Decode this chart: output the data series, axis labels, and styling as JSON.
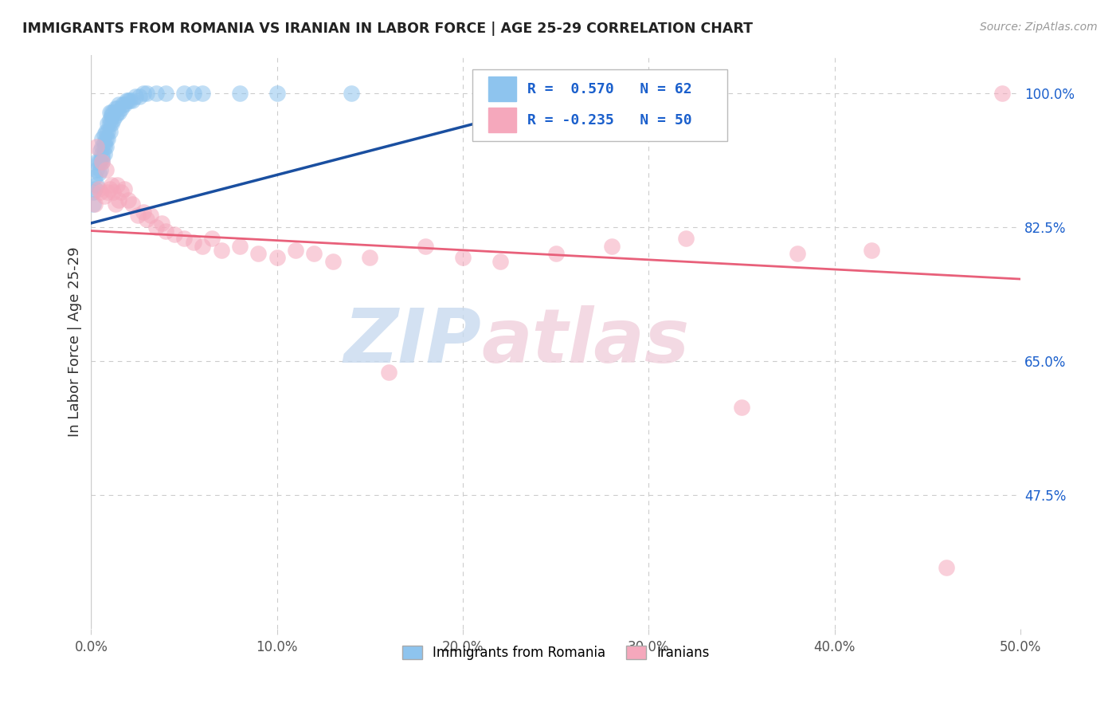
{
  "title": "IMMIGRANTS FROM ROMANIA VS IRANIAN IN LABOR FORCE | AGE 25-29 CORRELATION CHART",
  "source": "Source: ZipAtlas.com",
  "ylabel": "In Labor Force | Age 25-29",
  "xlim": [
    0,
    0.5
  ],
  "ylim": [
    0.3,
    1.05
  ],
  "r_romania": 0.57,
  "n_romania": 62,
  "r_iranian": -0.235,
  "n_iranian": 50,
  "romania_color": "#8EC4EE",
  "iranian_color": "#F5A8BC",
  "line_romania_color": "#1A4FA0",
  "line_iranian_color": "#E8607A",
  "watermark_color": "#DDEEFF",
  "watermark_color2": "#FFEEF4",
  "legend_label_romania": "Immigrants from Romania",
  "legend_label_iranian": "Iranians",
  "romania_x": [
    0.001,
    0.001,
    0.002,
    0.002,
    0.003,
    0.003,
    0.003,
    0.004,
    0.004,
    0.005,
    0.005,
    0.005,
    0.006,
    0.006,
    0.006,
    0.006,
    0.006,
    0.007,
    0.007,
    0.007,
    0.007,
    0.008,
    0.008,
    0.008,
    0.009,
    0.009,
    0.009,
    0.01,
    0.01,
    0.01,
    0.01,
    0.011,
    0.011,
    0.011,
    0.012,
    0.012,
    0.013,
    0.013,
    0.014,
    0.014,
    0.015,
    0.015,
    0.016,
    0.017,
    0.018,
    0.019,
    0.02,
    0.021,
    0.022,
    0.024,
    0.026,
    0.028,
    0.03,
    0.035,
    0.04,
    0.05,
    0.055,
    0.06,
    0.08,
    0.1,
    0.14,
    0.27
  ],
  "romania_y": [
    0.855,
    0.87,
    0.875,
    0.89,
    0.88,
    0.9,
    0.91,
    0.895,
    0.91,
    0.9,
    0.91,
    0.925,
    0.91,
    0.915,
    0.92,
    0.93,
    0.94,
    0.92,
    0.93,
    0.935,
    0.945,
    0.93,
    0.94,
    0.95,
    0.94,
    0.95,
    0.96,
    0.95,
    0.96,
    0.965,
    0.975,
    0.96,
    0.97,
    0.975,
    0.965,
    0.975,
    0.97,
    0.98,
    0.975,
    0.98,
    0.975,
    0.985,
    0.98,
    0.985,
    0.985,
    0.99,
    0.99,
    0.99,
    0.99,
    0.995,
    0.995,
    1.0,
    1.0,
    1.0,
    1.0,
    1.0,
    1.0,
    1.0,
    1.0,
    1.0,
    1.0,
    1.0
  ],
  "iranian_x": [
    0.002,
    0.003,
    0.004,
    0.005,
    0.006,
    0.007,
    0.008,
    0.009,
    0.01,
    0.011,
    0.012,
    0.013,
    0.014,
    0.015,
    0.016,
    0.018,
    0.02,
    0.022,
    0.025,
    0.028,
    0.03,
    0.032,
    0.035,
    0.038,
    0.04,
    0.045,
    0.05,
    0.055,
    0.06,
    0.065,
    0.07,
    0.08,
    0.09,
    0.1,
    0.11,
    0.12,
    0.13,
    0.15,
    0.16,
    0.18,
    0.2,
    0.22,
    0.25,
    0.28,
    0.32,
    0.35,
    0.38,
    0.42,
    0.46,
    0.49
  ],
  "iranian_y": [
    0.855,
    0.93,
    0.875,
    0.87,
    0.91,
    0.865,
    0.9,
    0.87,
    0.875,
    0.88,
    0.87,
    0.855,
    0.88,
    0.86,
    0.87,
    0.875,
    0.86,
    0.855,
    0.84,
    0.845,
    0.835,
    0.84,
    0.825,
    0.83,
    0.82,
    0.815,
    0.81,
    0.805,
    0.8,
    0.81,
    0.795,
    0.8,
    0.79,
    0.785,
    0.795,
    0.79,
    0.78,
    0.785,
    0.635,
    0.8,
    0.785,
    0.78,
    0.79,
    0.8,
    0.81,
    0.59,
    0.79,
    0.795,
    0.38,
    1.0
  ],
  "background_color": "#FFFFFF",
  "grid_color": "#CCCCCC",
  "iran_line_x0": 0.0,
  "iran_line_y0": 0.82,
  "iran_line_x1": 0.5,
  "iran_line_y1": 0.757,
  "rom_line_x0": 0.0,
  "rom_line_y0": 0.83,
  "rom_line_x1": 0.27,
  "rom_line_y1": 1.0
}
